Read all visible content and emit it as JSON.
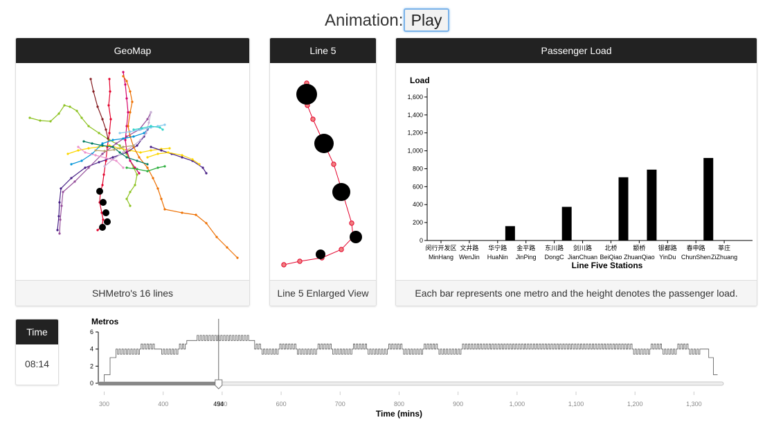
{
  "header": {
    "animation_label": "Animation:",
    "play_label": "Play"
  },
  "geomap": {
    "title": "GeoMap",
    "footer": "SHMetro's 16 lines",
    "line_colors": [
      "#e3002b",
      "#8cc220",
      "#fcd600",
      "#461d84",
      "#944d9a",
      "#d40068",
      "#ed6f00",
      "#0094d8",
      "#87caed",
      "#c6afd4",
      "#841c21",
      "#007a60",
      "#ec91cc",
      "#32d4cb",
      "#b5a06c",
      "#2aad3b"
    ]
  },
  "line5": {
    "title": "Line 5",
    "footer": "Line 5 Enlarged View",
    "line_color": "#e3002b"
  },
  "passenger": {
    "title": "Passenger Load",
    "footer": "Each bar represents one metro and the height denotes the passenger load."
  },
  "time": {
    "title": "Time",
    "value": "08:14"
  },
  "slider": {
    "value": 494,
    "value_label": "494"
  },
  "chart_data": [
    {
      "type": "bar",
      "title": "",
      "ylabel": "Load",
      "xlabel": "Line Five Stations",
      "ylim": [
        0,
        1700
      ],
      "yticks": [
        "0",
        "200",
        "400",
        "600",
        "800",
        "1,000",
        "1,200",
        "1,400",
        "1,600"
      ],
      "ytick_values": [
        0,
        200,
        400,
        600,
        800,
        1000,
        1200,
        1400,
        1600
      ],
      "categories_cn": [
        "闵行开发区",
        "文井路",
        "华宁路",
        "金平路",
        "东川路",
        "剑川路",
        "北桥",
        "颛桥",
        "银都路",
        "春申路",
        "莘庄"
      ],
      "categories": [
        "MinHang",
        "WenJin",
        "HuaNin",
        "JinPing",
        "DongC",
        "JianChuan",
        "BeiQiao",
        "ZhuanQiao",
        "YinDu",
        "ChunShen",
        "ZiZhuang"
      ],
      "bars": [
        {
          "station": "HuaNin",
          "value": 160
        },
        {
          "station": "DongC",
          "value": 375
        },
        {
          "station": "BeiQiao",
          "value": 705
        },
        {
          "station": "ZhuanQiao",
          "value": 790
        },
        {
          "station": "ChunShen",
          "value": 920
        }
      ],
      "bar_color": "#000000"
    },
    {
      "type": "line",
      "title": "",
      "ylabel": "Metros",
      "xlabel": "Time (mins)",
      "xlim": [
        290,
        1350
      ],
      "ylim": [
        0,
        6
      ],
      "xticks": [
        "300",
        "400",
        "500",
        "600",
        "700",
        "800",
        "900",
        "1,000",
        "1,100",
        "1,200",
        "1,300"
      ],
      "xtick_values": [
        300,
        400,
        500,
        600,
        700,
        800,
        900,
        1000,
        1100,
        1200,
        1300
      ],
      "yticks": [
        "0",
        "2",
        "4",
        "6"
      ],
      "ytick_values": [
        0,
        2,
        4,
        6
      ],
      "segments": [
        {
          "from": 290,
          "to": 300,
          "base": 0,
          "osc": 0
        },
        {
          "from": 300,
          "to": 310,
          "base": 1,
          "osc": 0
        },
        {
          "from": 310,
          "to": 320,
          "base": 3,
          "osc": 0
        },
        {
          "from": 320,
          "to": 360,
          "base": 4,
          "osc": -0.6
        },
        {
          "from": 360,
          "to": 385,
          "base": 4,
          "osc": 0.6
        },
        {
          "from": 385,
          "to": 395,
          "base": 4,
          "osc": 0
        },
        {
          "from": 395,
          "to": 425,
          "base": 4,
          "osc": -0.6
        },
        {
          "from": 425,
          "to": 440,
          "base": 4,
          "osc": 0.6
        },
        {
          "from": 440,
          "to": 455,
          "base": 5,
          "osc": 0
        },
        {
          "from": 455,
          "to": 545,
          "base": 5,
          "osc": 0.6
        },
        {
          "from": 545,
          "to": 555,
          "base": 5,
          "osc": 0
        },
        {
          "from": 555,
          "to": 565,
          "base": 4,
          "osc": 0.6
        },
        {
          "from": 565,
          "to": 595,
          "base": 4,
          "osc": -0.6
        },
        {
          "from": 595,
          "to": 625,
          "base": 4,
          "osc": 0.6
        },
        {
          "from": 625,
          "to": 660,
          "base": 4,
          "osc": -0.6
        },
        {
          "from": 660,
          "to": 685,
          "base": 4,
          "osc": 0.6
        },
        {
          "from": 685,
          "to": 720,
          "base": 4,
          "osc": -0.6
        },
        {
          "from": 720,
          "to": 745,
          "base": 4,
          "osc": 0.6
        },
        {
          "from": 745,
          "to": 780,
          "base": 4,
          "osc": -0.6
        },
        {
          "from": 780,
          "to": 805,
          "base": 4,
          "osc": 0.6
        },
        {
          "from": 805,
          "to": 840,
          "base": 4,
          "osc": -0.6
        },
        {
          "from": 840,
          "to": 865,
          "base": 4,
          "osc": 0.6
        },
        {
          "from": 865,
          "to": 905,
          "base": 4,
          "osc": -0.6
        },
        {
          "from": 905,
          "to": 935,
          "base": 4,
          "osc": 0.6
        },
        {
          "from": 935,
          "to": 1195,
          "base": 4,
          "osc": 0.6
        },
        {
          "from": 1195,
          "to": 1225,
          "base": 4,
          "osc": -0.6
        },
        {
          "from": 1225,
          "to": 1245,
          "base": 4,
          "osc": 0.6
        },
        {
          "from": 1245,
          "to": 1270,
          "base": 4,
          "osc": -0.6
        },
        {
          "from": 1270,
          "to": 1290,
          "base": 4,
          "osc": 0.6
        },
        {
          "from": 1290,
          "to": 1310,
          "base": 4,
          "osc": -0.6
        },
        {
          "from": 1310,
          "to": 1325,
          "base": 4,
          "osc": 0
        },
        {
          "from": 1325,
          "to": 1333,
          "base": 3,
          "osc": 0
        },
        {
          "from": 1333,
          "to": 1340,
          "base": 1,
          "osc": 0
        }
      ]
    }
  ]
}
